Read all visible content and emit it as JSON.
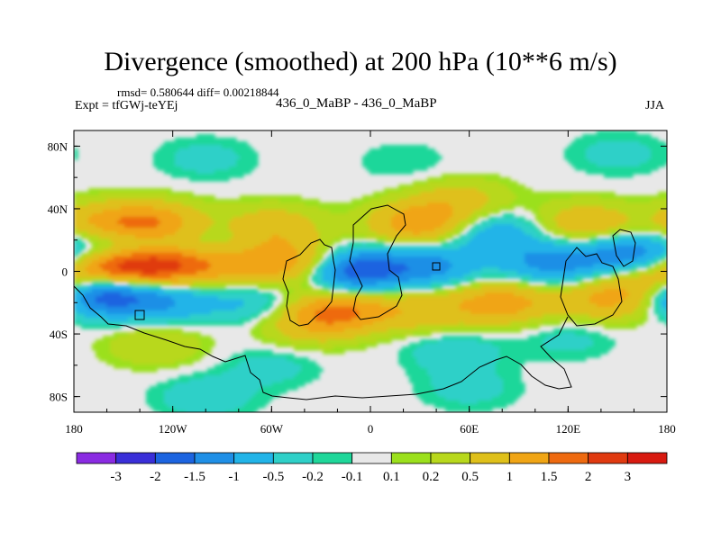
{
  "header": {
    "title": "Divergence (smoothed) at 200 hPa (10**6 m/s)",
    "stats": "rmsd= 0.580644 diff= 0.00218844",
    "experiment": "Expt = tfGWj-teYEj",
    "experiment_names": "436_0_MaBP - 436_0_MaBP",
    "season": "JJA"
  },
  "chart_data": {
    "type": "heatmap",
    "title": "Divergence (smoothed) at 200 hPa (10**6 m/s)",
    "variable": "divergence",
    "units": "10**6 m/s",
    "level": "200 hPa",
    "xlim": [
      -180,
      180
    ],
    "ylim": [
      -90,
      90
    ],
    "x_ticks": [
      -180,
      -120,
      -60,
      0,
      60,
      120,
      180
    ],
    "x_tick_labels": [
      "180",
      "120W",
      "60W",
      "0",
      "60E",
      "120E",
      "180"
    ],
    "y_ticks": [
      80,
      40,
      0,
      -40,
      -80
    ],
    "y_tick_labels": [
      "80N",
      "40N",
      "0",
      "40S",
      "80S"
    ],
    "colorbar": {
      "levels": [
        -3,
        -2,
        -1.5,
        -1,
        -0.5,
        -0.2,
        -0.1,
        0.1,
        0.2,
        0.5,
        1,
        1.5,
        2,
        3
      ],
      "labels": [
        "-3",
        "-2",
        "-1.5",
        "-1",
        "-0.5",
        "-0.2",
        "-0.1",
        "0.1",
        "0.2",
        "0.5",
        "1",
        "1.5",
        "2",
        "3"
      ],
      "colors": [
        "#8a2be2",
        "#3a2fd8",
        "#1c64e0",
        "#1f8fe6",
        "#22b4e8",
        "#2fd0c8",
        "#1fd79a",
        "#e8e8e8",
        "#9be01c",
        "#b8d81c",
        "#dfc01a",
        "#f0a515",
        "#ee6a10",
        "#e03a10",
        "#d81a10"
      ]
    },
    "features": [
      {
        "lon": -150,
        "lat": 3,
        "value": 2.6
      },
      {
        "lon": -115,
        "lat": 4,
        "value": 1.6
      },
      {
        "lon": -75,
        "lat": 6,
        "value": 1.0
      },
      {
        "lon": -35,
        "lat": 4,
        "value": 1.7
      },
      {
        "lon": -150,
        "lat": 15,
        "value": -1.2
      },
      {
        "lon": -95,
        "lat": 15,
        "value": -0.6
      },
      {
        "lon": -165,
        "lat": -13,
        "value": -2.4
      },
      {
        "lon": -125,
        "lat": -18,
        "value": -1.0
      },
      {
        "lon": -70,
        "lat": -20,
        "value": -0.6
      },
      {
        "lon": -15,
        "lat": 1,
        "value": -2.6
      },
      {
        "lon": 35,
        "lat": 3,
        "value": -1.2
      },
      {
        "lon": 110,
        "lat": 5,
        "value": -1.2
      },
      {
        "lon": 75,
        "lat": 25,
        "value": -0.9
      },
      {
        "lon": 160,
        "lat": 10,
        "value": -1.6
      },
      {
        "lon": -130,
        "lat": 30,
        "value": 1.3
      },
      {
        "lon": -160,
        "lat": 30,
        "value": 1.1
      },
      {
        "lon": -60,
        "lat": 28,
        "value": 0.9
      },
      {
        "lon": 30,
        "lat": 30,
        "value": 1.4
      },
      {
        "lon": 55,
        "lat": 45,
        "value": 0.7
      },
      {
        "lon": 130,
        "lat": 30,
        "value": 1.0
      },
      {
        "lon": -20,
        "lat": -25,
        "value": 1.5
      },
      {
        "lon": -40,
        "lat": -35,
        "value": 0.6
      },
      {
        "lon": 30,
        "lat": -25,
        "value": 0.8
      },
      {
        "lon": 80,
        "lat": -20,
        "value": 1.3
      },
      {
        "lon": 145,
        "lat": -18,
        "value": 1.1
      },
      {
        "lon": 175,
        "lat": -5,
        "value": 1.5
      },
      {
        "lon": -130,
        "lat": -47,
        "value": 0.5
      },
      {
        "lon": -60,
        "lat": -60,
        "value": -0.3
      },
      {
        "lon": 50,
        "lat": -50,
        "value": -0.4
      },
      {
        "lon": 120,
        "lat": -42,
        "value": -0.3
      },
      {
        "lon": -100,
        "lat": -80,
        "value": -0.4
      },
      {
        "lon": 60,
        "lat": -75,
        "value": -0.3
      },
      {
        "lon": -100,
        "lat": 72,
        "value": -0.3
      },
      {
        "lon": 20,
        "lat": 70,
        "value": -0.2
      },
      {
        "lon": 150,
        "lat": 75,
        "value": -0.3
      }
    ]
  }
}
